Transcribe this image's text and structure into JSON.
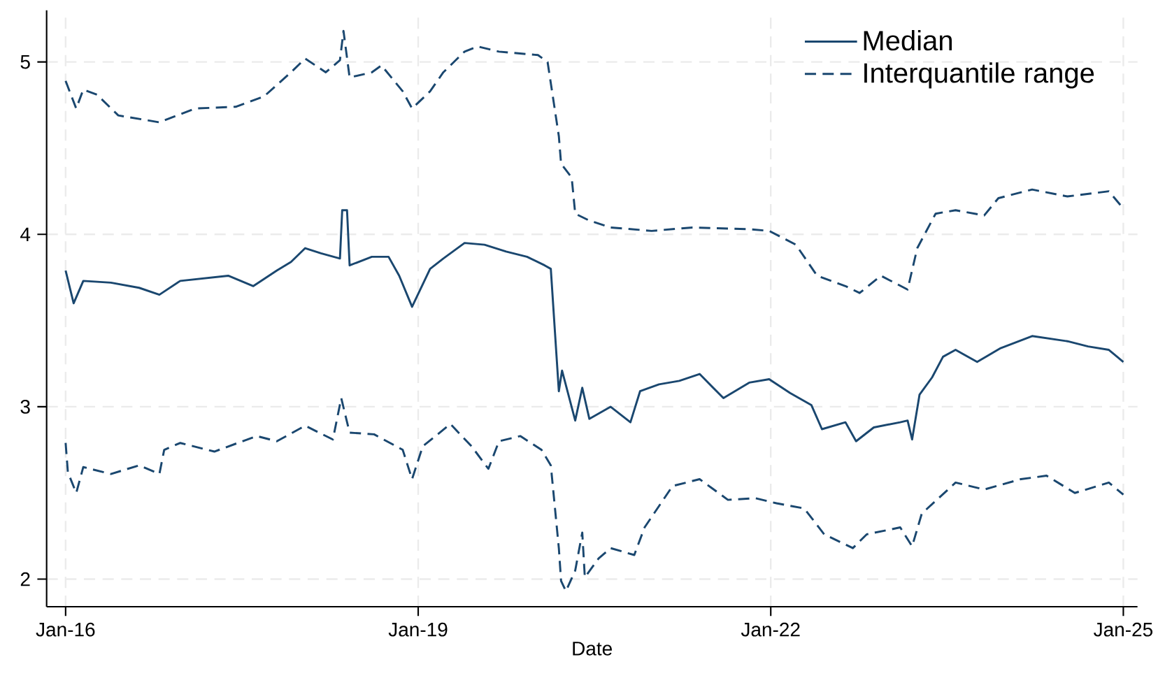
{
  "chart_data": {
    "type": "line",
    "xlabel": "Date",
    "xlim": [
      "2015-11-03",
      "2025-02-14"
    ],
    "ylim": [
      1.84,
      5.3
    ],
    "xticks": [
      {
        "value": "2016-01-01",
        "label": "Jan-16"
      },
      {
        "value": "2019-01-01",
        "label": "Jan-19"
      },
      {
        "value": "2022-01-01",
        "label": "Jan-22"
      },
      {
        "value": "2025-01-01",
        "label": "Jan-25"
      }
    ],
    "yticks": [
      2,
      3,
      4,
      5
    ],
    "grid": true,
    "legend": "top right",
    "marker": "none",
    "series": [
      {
        "name": "Median",
        "color": "#1a476f",
        "line_style": "solid",
        "x": [
          "2016-01-01",
          "2016-01-26",
          "2016-02-25",
          "2016-05-21",
          "2016-08-17",
          "2016-10-19",
          "2016-12-23",
          "2017-05-21",
          "2017-08-07",
          "2017-10-19",
          "2017-12-02",
          "2018-01-15",
          "2018-03-05",
          "2018-05-03",
          "2018-05-10",
          "2018-05-25",
          "2018-06-02",
          "2018-08-10",
          "2018-10-01",
          "2018-11-03",
          "2018-12-13",
          "2019-02-07",
          "2019-03-20",
          "2019-05-25",
          "2019-07-26",
          "2019-10-01",
          "2019-12-05",
          "2020-01-29",
          "2020-02-17",
          "2020-03-13",
          "2020-03-23",
          "2020-05-03",
          "2020-05-25",
          "2020-06-16",
          "2020-08-21",
          "2020-10-22",
          "2020-11-21",
          "2021-01-19",
          "2021-03-23",
          "2021-05-25",
          "2021-08-07",
          "2021-10-26",
          "2021-12-27",
          "2022-03-02",
          "2022-05-07",
          "2022-06-09",
          "2022-08-21",
          "2022-09-23",
          "2022-11-17",
          "2023-02-07",
          "2023-03-02",
          "2023-03-16",
          "2023-04-08",
          "2023-05-17",
          "2023-06-20",
          "2023-07-29",
          "2023-10-04",
          "2023-12-16",
          "2024-03-23",
          "2024-07-11",
          "2024-09-13",
          "2024-11-17",
          "2025-01-01"
        ],
        "values": [
          3.79,
          3.6,
          3.73,
          3.72,
          3.69,
          3.65,
          3.73,
          3.76,
          3.7,
          3.79,
          3.84,
          3.92,
          3.89,
          3.86,
          4.14,
          4.14,
          3.82,
          3.87,
          3.87,
          3.76,
          3.58,
          3.8,
          3.86,
          3.95,
          3.94,
          3.9,
          3.87,
          3.82,
          3.8,
          3.09,
          3.21,
          2.92,
          3.11,
          2.93,
          3.0,
          2.91,
          3.09,
          3.13,
          3.15,
          3.19,
          3.05,
          3.14,
          3.16,
          3.08,
          3.01,
          2.87,
          2.91,
          2.8,
          2.88,
          2.91,
          2.92,
          2.81,
          3.07,
          3.17,
          3.29,
          3.33,
          3.26,
          3.34,
          3.41,
          3.38,
          3.35,
          3.33,
          3.26
        ]
      },
      {
        "name": "Interquantile range",
        "color": "#1a476f",
        "line_style": "dashed",
        "x": [
          "2016-01-01",
          "2016-02-03",
          "2016-02-25",
          "2016-04-08",
          "2016-06-13",
          "2016-10-19",
          "2017-02-07",
          "2017-06-13",
          "2017-09-09",
          "2017-12-02",
          "2018-01-15",
          "2018-03-20",
          "2018-05-03",
          "2018-05-14",
          "2018-06-02",
          "2018-08-10",
          "2018-09-09",
          "2018-11-14",
          "2018-12-13",
          "2019-02-07",
          "2019-03-20",
          "2019-05-25",
          "2019-07-04",
          "2019-09-09",
          "2020-01-08",
          "2020-02-07",
          "2020-03-13",
          "2020-03-20",
          "2020-04-22",
          "2020-05-03",
          "2020-06-16",
          "2020-08-21",
          "2020-12-27",
          "2021-05-03",
          "2021-10-26",
          "2021-12-27",
          "2022-03-20",
          "2022-05-25",
          "2022-08-21",
          "2022-10-04",
          "2022-12-09",
          "2023-03-02",
          "2023-04-01",
          "2023-05-28",
          "2023-07-29",
          "2023-10-26",
          "2023-12-09",
          "2024-03-23",
          "2024-07-11",
          "2024-11-17",
          "2025-01-01"
        ],
        "values": [
          4.89,
          4.73,
          4.84,
          4.81,
          4.69,
          4.65,
          4.73,
          4.74,
          4.8,
          4.94,
          5.02,
          4.94,
          5.01,
          5.18,
          4.91,
          4.94,
          4.98,
          4.83,
          4.73,
          4.83,
          4.94,
          5.06,
          5.09,
          5.06,
          5.04,
          5.0,
          4.57,
          4.41,
          4.33,
          4.12,
          4.08,
          4.04,
          4.02,
          4.04,
          4.03,
          4.02,
          3.94,
          3.76,
          3.7,
          3.66,
          3.76,
          3.68,
          3.92,
          4.12,
          4.14,
          4.11,
          4.21,
          4.26,
          4.22,
          4.25,
          4.15
        ]
      },
      {
        "color": "#1a476f",
        "line_style": "dashed",
        "x": [
          "2016-01-01",
          "2016-01-08",
          "2016-02-03",
          "2016-02-25",
          "2016-05-21",
          "2016-08-17",
          "2016-10-19",
          "2016-11-03",
          "2016-12-23",
          "2017-04-08",
          "2017-08-17",
          "2017-10-19",
          "2018-01-15",
          "2018-04-11",
          "2018-05-07",
          "2018-06-02",
          "2018-08-17",
          "2018-11-14",
          "2018-12-13",
          "2019-01-15",
          "2019-04-11",
          "2019-06-16",
          "2019-08-07",
          "2019-09-09",
          "2019-11-14",
          "2020-01-19",
          "2020-02-17",
          "2020-03-13",
          "2020-03-20",
          "2020-04-04",
          "2020-05-03",
          "2020-05-25",
          "2020-06-02",
          "2020-07-15",
          "2020-08-21",
          "2020-11-03",
          "2020-12-05",
          "2021-03-02",
          "2021-05-25",
          "2021-08-21",
          "2021-11-14",
          "2022-01-19",
          "2022-04-15",
          "2022-06-16",
          "2022-09-13",
          "2022-10-26",
          "2023-02-07",
          "2023-03-16",
          "2023-04-15",
          "2023-07-29",
          "2023-10-26",
          "2024-02-17",
          "2024-05-07",
          "2024-08-03",
          "2024-11-17",
          "2025-01-01"
        ],
        "values": [
          2.79,
          2.62,
          2.5,
          2.65,
          2.61,
          2.66,
          2.61,
          2.75,
          2.79,
          2.74,
          2.83,
          2.8,
          2.89,
          2.81,
          3.05,
          2.85,
          2.84,
          2.75,
          2.58,
          2.77,
          2.9,
          2.77,
          2.64,
          2.8,
          2.83,
          2.75,
          2.66,
          2.18,
          1.99,
          1.93,
          2.05,
          2.27,
          2.01,
          2.12,
          2.18,
          2.14,
          2.3,
          2.54,
          2.58,
          2.46,
          2.47,
          2.44,
          2.41,
          2.26,
          2.18,
          2.26,
          2.3,
          2.19,
          2.38,
          2.56,
          2.52,
          2.58,
          2.6,
          2.5,
          2.56,
          2.49
        ]
      }
    ]
  }
}
